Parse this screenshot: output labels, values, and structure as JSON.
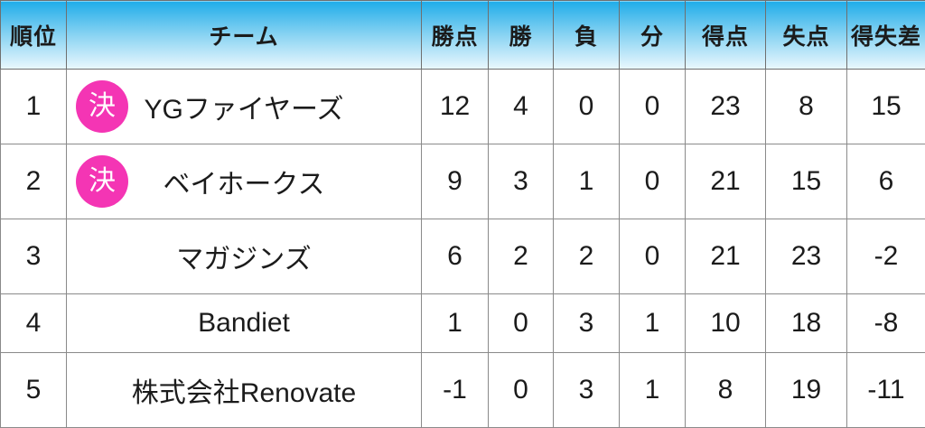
{
  "chart_data": {
    "type": "table",
    "title": "League standings table",
    "columns": [
      {
        "key": "rank",
        "label": "順位"
      },
      {
        "key": "team",
        "label": "チーム"
      },
      {
        "key": "points",
        "label": "勝点"
      },
      {
        "key": "wins",
        "label": "勝"
      },
      {
        "key": "losses",
        "label": "負"
      },
      {
        "key": "draws",
        "label": "分"
      },
      {
        "key": "goals_for",
        "label": "得点"
      },
      {
        "key": "goals_against",
        "label": "失点"
      },
      {
        "key": "goal_diff",
        "label": "得失差"
      }
    ],
    "rows": [
      {
        "rank": "1",
        "badge": "決",
        "team": "YGファイヤーズ",
        "points": "12",
        "wins": "4",
        "losses": "0",
        "draws": "0",
        "goals_for": "23",
        "goals_against": "8",
        "goal_diff": "15"
      },
      {
        "rank": "2",
        "badge": "決",
        "team": "ベイホークス",
        "points": "9",
        "wins": "3",
        "losses": "1",
        "draws": "0",
        "goals_for": "21",
        "goals_against": "15",
        "goal_diff": "6"
      },
      {
        "rank": "3",
        "badge": "",
        "team": "マガジンズ",
        "points": "6",
        "wins": "2",
        "losses": "2",
        "draws": "0",
        "goals_for": "21",
        "goals_against": "23",
        "goal_diff": "-2"
      },
      {
        "rank": "4",
        "badge": "",
        "team": "Bandiet",
        "points": "1",
        "wins": "0",
        "losses": "3",
        "draws": "1",
        "goals_for": "10",
        "goals_against": "18",
        "goal_diff": "-8"
      },
      {
        "rank": "5",
        "badge": "",
        "team": "株式会社Renovate",
        "points": "-1",
        "wins": "0",
        "losses": "3",
        "draws": "1",
        "goals_for": "8",
        "goals_against": "19",
        "goal_diff": "-11"
      }
    ],
    "legend": []
  },
  "colors": {
    "header_top": "#1fade9",
    "header_mid": "#8ed5f3",
    "header_bottom": "#eaf8fe",
    "header_border": "#6f6f6f",
    "border": "#8a8a8a",
    "badge": "#f435b4",
    "text": "#1b1b1b"
  }
}
